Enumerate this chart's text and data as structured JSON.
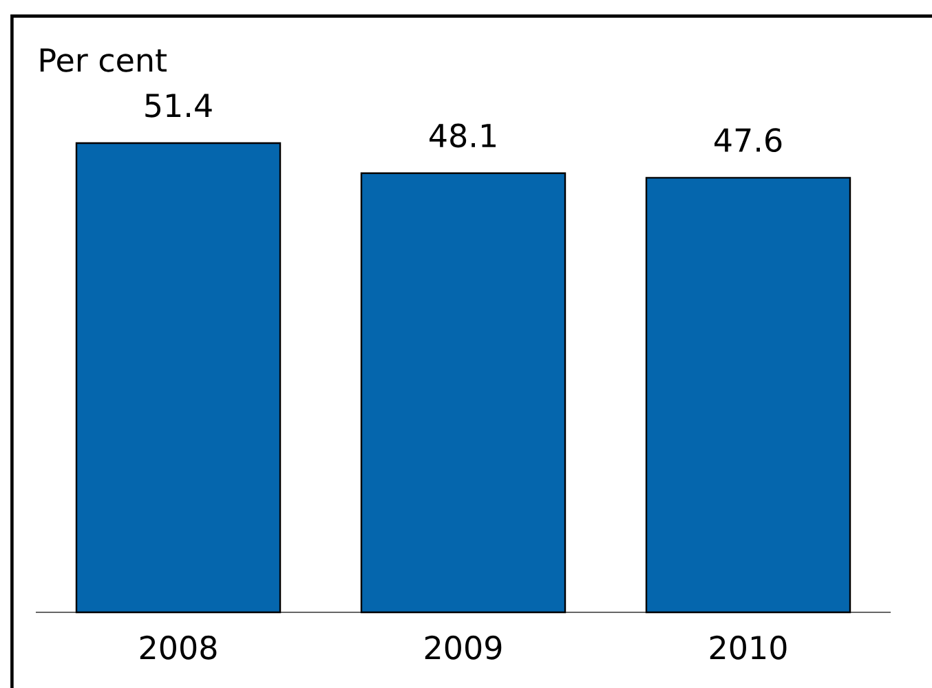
{
  "chart_data": {
    "type": "bar",
    "ylabel": "Per cent",
    "categories": [
      "2008",
      "2009",
      "2010"
    ],
    "values": [
      51.4,
      48.1,
      47.6
    ],
    "color": "#0566ad",
    "data_labels": true,
    "tick_labels": "x"
  }
}
